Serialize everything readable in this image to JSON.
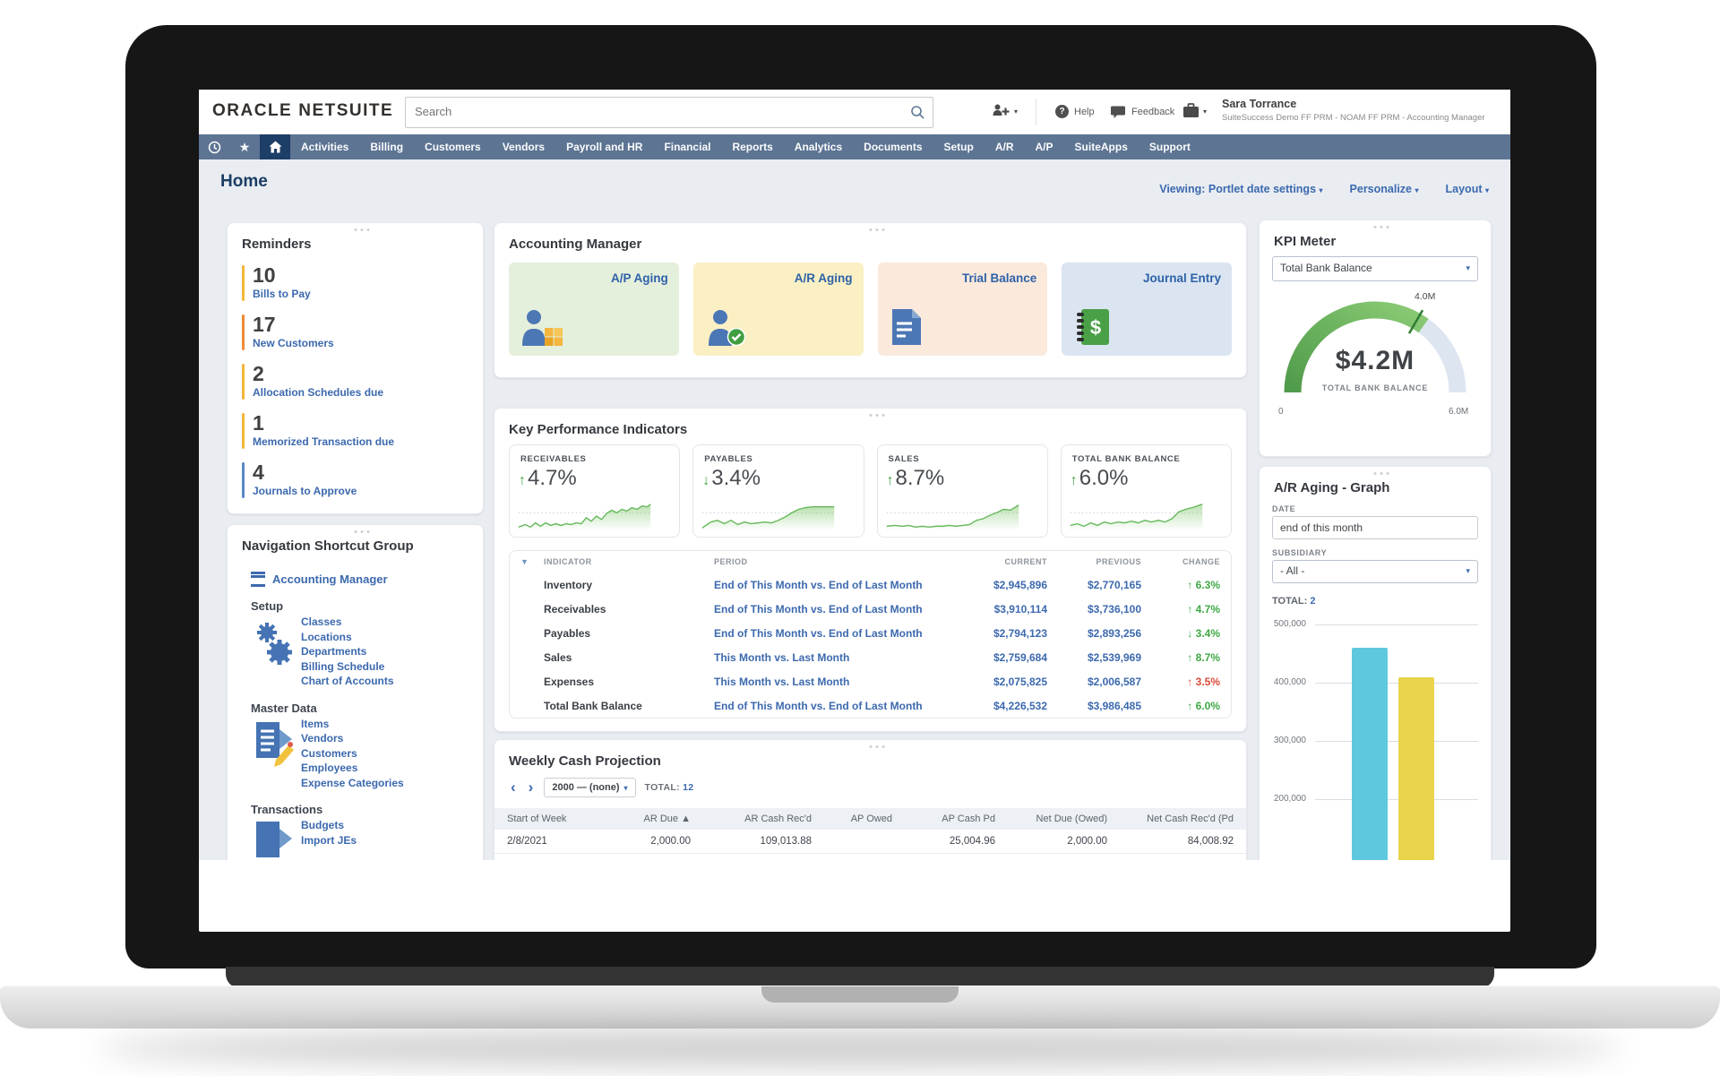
{
  "icons": {
    "caret": "▾",
    "help_glyph": "?",
    "star": "★",
    "filter_caret": "▼",
    "chevron_left": "‹",
    "chevron_right": "›"
  },
  "header": {
    "logo_oracle": "ORACLE",
    "logo_netsuite": "NETSUITE",
    "search_placeholder": "Search",
    "help_label": "Help",
    "feedback_label": "Feedback",
    "user_name": "Sara Torrance",
    "user_role": "SuiteSuccess Demo FF PRM - NOAM FF PRM - Accounting Manager"
  },
  "nav": {
    "items": [
      "Activities",
      "Billing",
      "Customers",
      "Vendors",
      "Payroll and HR",
      "Financial",
      "Reports",
      "Analytics",
      "Documents",
      "Setup",
      "A/R",
      "A/P",
      "SuiteApps",
      "Support"
    ]
  },
  "page_bar": {
    "title": "Home",
    "viewing": "Viewing: Portlet date settings",
    "personalize": "Personalize",
    "layout": "Layout"
  },
  "reminders": {
    "title": "Reminders",
    "items": [
      {
        "count": "10",
        "label": "Bills to Pay",
        "color": "#f5b63c"
      },
      {
        "count": "17",
        "label": "New Customers",
        "color": "#ef8b35"
      },
      {
        "count": "2",
        "label": "Allocation Schedules due",
        "color": "#f5b63c"
      },
      {
        "count": "1",
        "label": "Memorized Transaction due",
        "color": "#f5b63c"
      },
      {
        "count": "4",
        "label": "Journals to Approve",
        "color": "#5b86c5"
      }
    ]
  },
  "shortcuts": {
    "title": "Navigation Shortcut Group",
    "main_link": "Accounting Manager",
    "groups": [
      {
        "heading": "Setup",
        "links": [
          "Classes",
          "Locations",
          "Departments",
          "Billing Schedule",
          "Chart of Accounts"
        ]
      },
      {
        "heading": "Master Data",
        "links": [
          "Items",
          "Vendors",
          "Customers",
          "Employees",
          "Expense Categories"
        ]
      },
      {
        "heading": "Transactions",
        "links": [
          "Budgets",
          "Import JEs"
        ]
      }
    ]
  },
  "accounting_manager": {
    "title": "Accounting Manager",
    "tiles": [
      {
        "label": "A/P Aging",
        "bg": "#e4efdc"
      },
      {
        "label": "A/R Aging",
        "bg": "#faf0c4"
      },
      {
        "label": "Trial Balance",
        "bg": "#fbe9dc"
      },
      {
        "label": "Journal Entry",
        "bg": "#dbe5f1"
      }
    ]
  },
  "kpi": {
    "title": "Key Performance Indicators",
    "tiles": [
      {
        "label": "RECEIVABLES",
        "arrow": "↑",
        "arrow_color": "#3fa845",
        "value": "4.7%"
      },
      {
        "label": "PAYABLES",
        "arrow": "↓",
        "arrow_color": "#3fa845",
        "value": "3.4%"
      },
      {
        "label": "SALES",
        "arrow": "↑",
        "arrow_color": "#3fa845",
        "value": "8.7%"
      },
      {
        "label": "TOTAL BANK BALANCE",
        "arrow": "↑",
        "arrow_color": "#3fa845",
        "value": "6.0%"
      }
    ],
    "table": {
      "headers": {
        "indicator": "INDICATOR",
        "period": "PERIOD",
        "current": "CURRENT",
        "previous": "PREVIOUS",
        "change": "CHANGE"
      },
      "rows": [
        {
          "indicator": "Inventory",
          "period": "End of This Month vs. End of Last Month",
          "current": "$2,945,896",
          "previous": "$2,770,165",
          "arrow": "↑",
          "change": "6.3%",
          "change_color": "#3fa845"
        },
        {
          "indicator": "Receivables",
          "period": "End of This Month vs. End of Last Month",
          "current": "$3,910,114",
          "previous": "$3,736,100",
          "arrow": "↑",
          "change": "4.7%",
          "change_color": "#3fa845"
        },
        {
          "indicator": "Payables",
          "period": "End of This Month vs. End of Last Month",
          "current": "$2,794,123",
          "previous": "$2,893,256",
          "arrow": "↓",
          "change": "3.4%",
          "change_color": "#3fa845"
        },
        {
          "indicator": "Sales",
          "period": "This Month vs. Last Month",
          "current": "$2,759,684",
          "previous": "$2,539,969",
          "arrow": "↑",
          "change": "8.7%",
          "change_color": "#3fa845"
        },
        {
          "indicator": "Expenses",
          "period": "This Month vs. Last Month",
          "current": "$2,075,825",
          "previous": "$2,006,587",
          "arrow": "↑",
          "change": "3.5%",
          "change_color": "#dd4b39"
        },
        {
          "indicator": "Total Bank Balance",
          "period": "End of This Month vs. End of Last Month",
          "current": "$4,226,532",
          "previous": "$3,986,485",
          "arrow": "↑",
          "change": "6.0%",
          "change_color": "#3fa845"
        }
      ]
    }
  },
  "weekly_cash": {
    "title": "Weekly Cash Projection",
    "range_value": "2000 — (none)",
    "total_label": "TOTAL:",
    "total_value": "12",
    "headers": [
      "Start of Week",
      "AR Due ▲",
      "AR Cash Rec'd",
      "AP Owed",
      "AP Cash Pd",
      "Net Due (Owed)",
      "Net Cash Rec'd (Pd"
    ],
    "rows": [
      {
        "c0": "2/8/2021",
        "c1": "2,000.00",
        "c2": "109,013.88",
        "c3": "",
        "c4": "25,004.96",
        "c5": "2,000.00",
        "c6": "84,008.92"
      }
    ]
  },
  "kpi_meter": {
    "title": "KPI Meter",
    "selected_kpi": "Total Bank Balance",
    "center_value": "$4.2M",
    "center_label": "TOTAL BANK BALANCE",
    "min_label": "0",
    "max_label": "6.0M",
    "threshold_label": "4.0M",
    "chart_data": {
      "type": "gauge",
      "value": 4200000,
      "min": 0,
      "max": 6000000,
      "threshold": 4000000,
      "arc_color_start": "#8cc979",
      "arc_color_end": "#3e8f43",
      "rest_color": "#dde5f0"
    }
  },
  "ar_aging": {
    "title": "A/R Aging - Graph",
    "date_label": "DATE",
    "date_value": "end of this month",
    "subsidiary_label": "SUBSIDIARY",
    "subsidiary_value": "- All -",
    "total_label": "TOTAL:",
    "total_value": "2",
    "chart_data": {
      "type": "bar",
      "values": [
        460000,
        410000
      ],
      "colors": [
        "#5ec9de",
        "#e9d44b"
      ],
      "y_ticks": [
        "500,000",
        "400,000",
        "300,000",
        "200,000"
      ],
      "y_tick_values": [
        500000,
        400000,
        300000,
        200000
      ],
      "grid": true,
      "bars_clipped_at_bottom": true
    }
  }
}
